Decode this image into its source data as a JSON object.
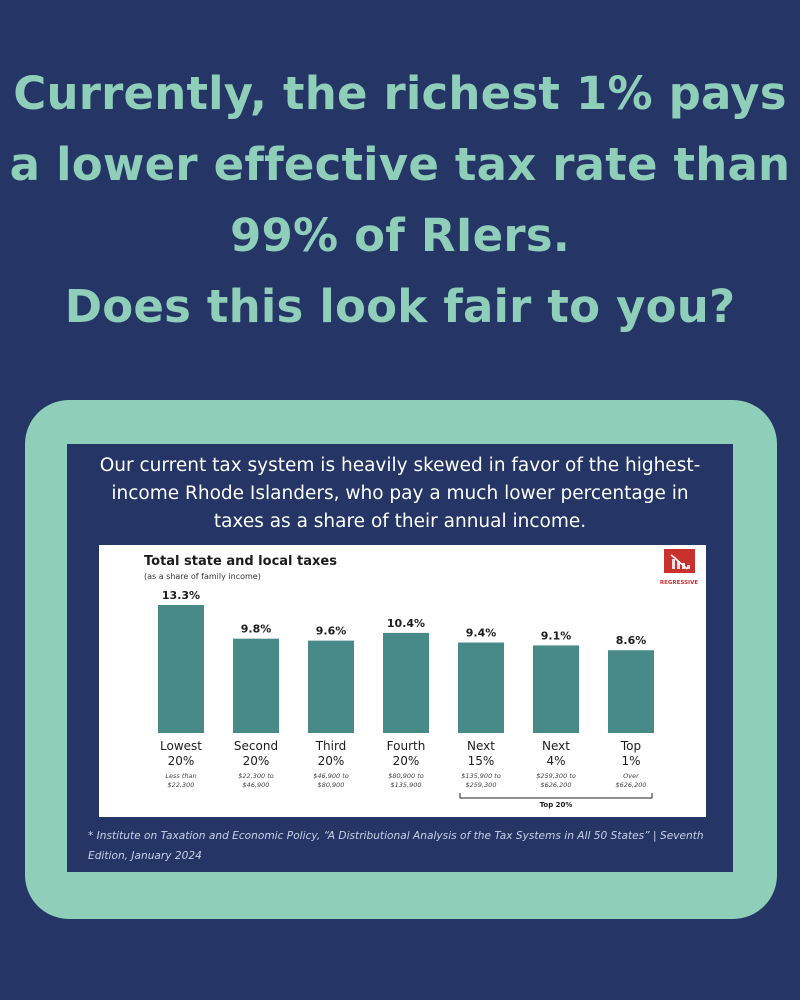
{
  "headline": {
    "line1": "Currently, the richest 1% pays",
    "line2": "a lower effective tax rate than",
    "line3": "99% of RIers.",
    "line4": "Does this look fair to you?"
  },
  "intro": {
    "line1": "Our current tax system is heavily skewed in favor of the highest-",
    "line2": "income Rhode Islanders, who pay a much lower percentage in",
    "line3": "taxes as a share of their annual income."
  },
  "badge_label": "REGRESSIVE",
  "icon": "regressive-chart-icon",
  "colors": {
    "background": "#243566",
    "accent": "#8fcfb9",
    "bar": "#478a88",
    "badge": "#c8312d"
  },
  "chart_data": {
    "type": "bar",
    "title": "Total state and local taxes",
    "subtitle": "(as a share of family income)",
    "categories": [
      [
        "Lowest",
        "20%"
      ],
      [
        "Second",
        "20%"
      ],
      [
        "Third",
        "20%"
      ],
      [
        "Fourth",
        "20%"
      ],
      [
        "Next",
        "15%"
      ],
      [
        "Next",
        "4%"
      ],
      [
        "Top",
        "1%"
      ]
    ],
    "ranges": [
      [
        "Less than",
        "$22,300"
      ],
      [
        "$22,300 to",
        "$46,900"
      ],
      [
        "$46,900 to",
        "$80,900"
      ],
      [
        "$80,900 to",
        "$135,900"
      ],
      [
        "$135,900 to",
        "$259,300"
      ],
      [
        "$259,300 to",
        "$626,200"
      ],
      [
        "Over",
        "$626,200"
      ]
    ],
    "values": [
      13.3,
      9.8,
      9.6,
      10.4,
      9.4,
      9.1,
      8.6
    ],
    "value_labels": [
      "13.3%",
      "9.8%",
      "9.6%",
      "10.4%",
      "9.4%",
      "9.1%",
      "8.6%"
    ],
    "group_label": "Top 20%",
    "grid": false
  },
  "footnote": {
    "line1": "* Institute on Taxation and Economic Policy, “A Distributional Analysis of the Tax Systems in All 50 States” | Seventh",
    "line2": "Edition, January 2024"
  }
}
